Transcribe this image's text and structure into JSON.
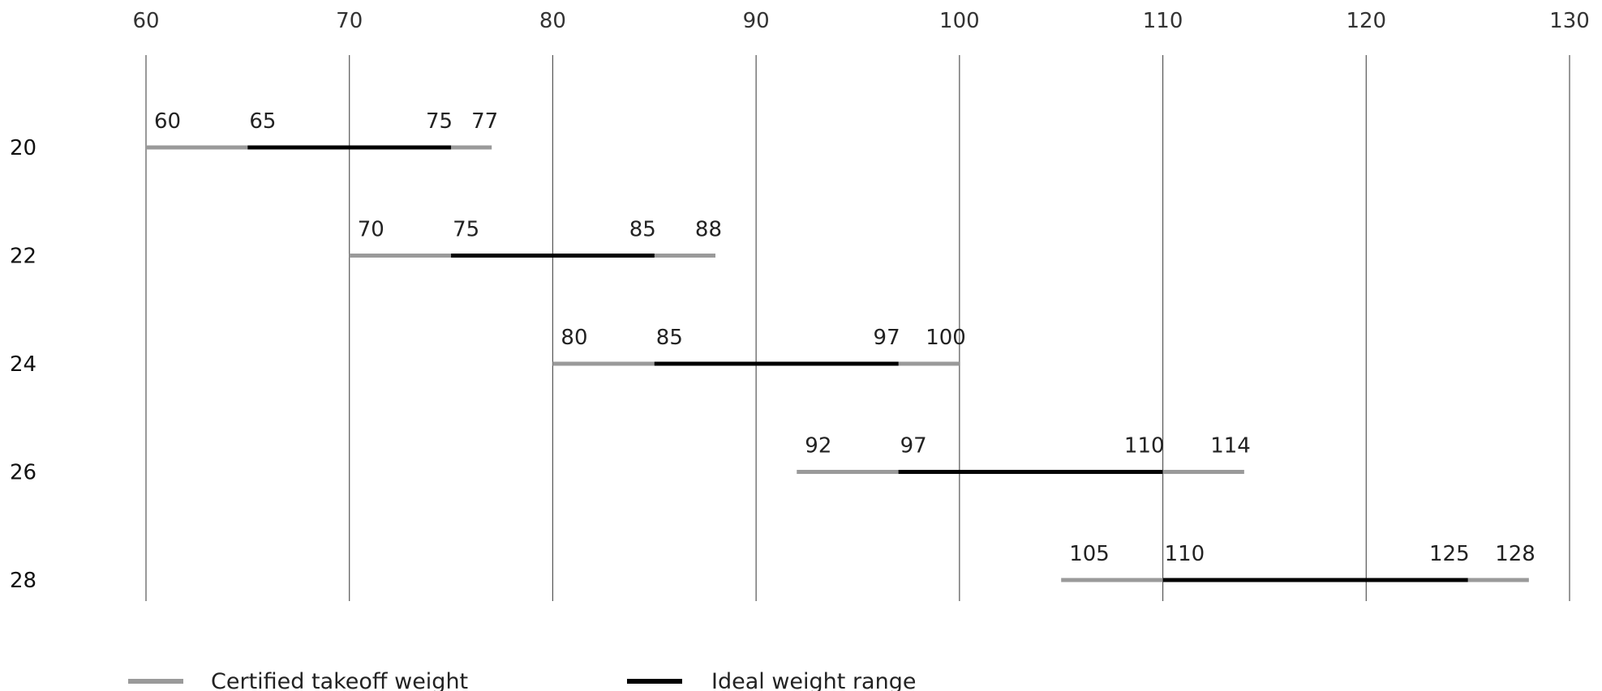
{
  "chart_data": {
    "type": "range-bar",
    "title": "",
    "xlabel": "",
    "ylabel": "",
    "xlim": [
      60,
      130
    ],
    "x_ticks": [
      60,
      70,
      80,
      90,
      100,
      110,
      120,
      130
    ],
    "grid": "vertical",
    "legend_position": "bottom-left",
    "series": [
      {
        "name": "Certified takeoff weight",
        "color": "#9a9a9a"
      },
      {
        "name": "Ideal weight range",
        "color": "#000000"
      }
    ],
    "rows": [
      {
        "label": "20",
        "certified": [
          60,
          77
        ],
        "ideal": [
          65,
          75
        ]
      },
      {
        "label": "22",
        "certified": [
          70,
          88
        ],
        "ideal": [
          75,
          85
        ]
      },
      {
        "label": "24",
        "certified": [
          80,
          100
        ],
        "ideal": [
          85,
          97
        ]
      },
      {
        "label": "26",
        "certified": [
          92,
          114
        ],
        "ideal": [
          97,
          110
        ]
      },
      {
        "label": "28",
        "certified": [
          105,
          128
        ],
        "ideal": [
          110,
          125
        ]
      }
    ],
    "colors": {
      "grid": "#555555",
      "certified": "#9a9a9a",
      "ideal": "#000000"
    }
  }
}
